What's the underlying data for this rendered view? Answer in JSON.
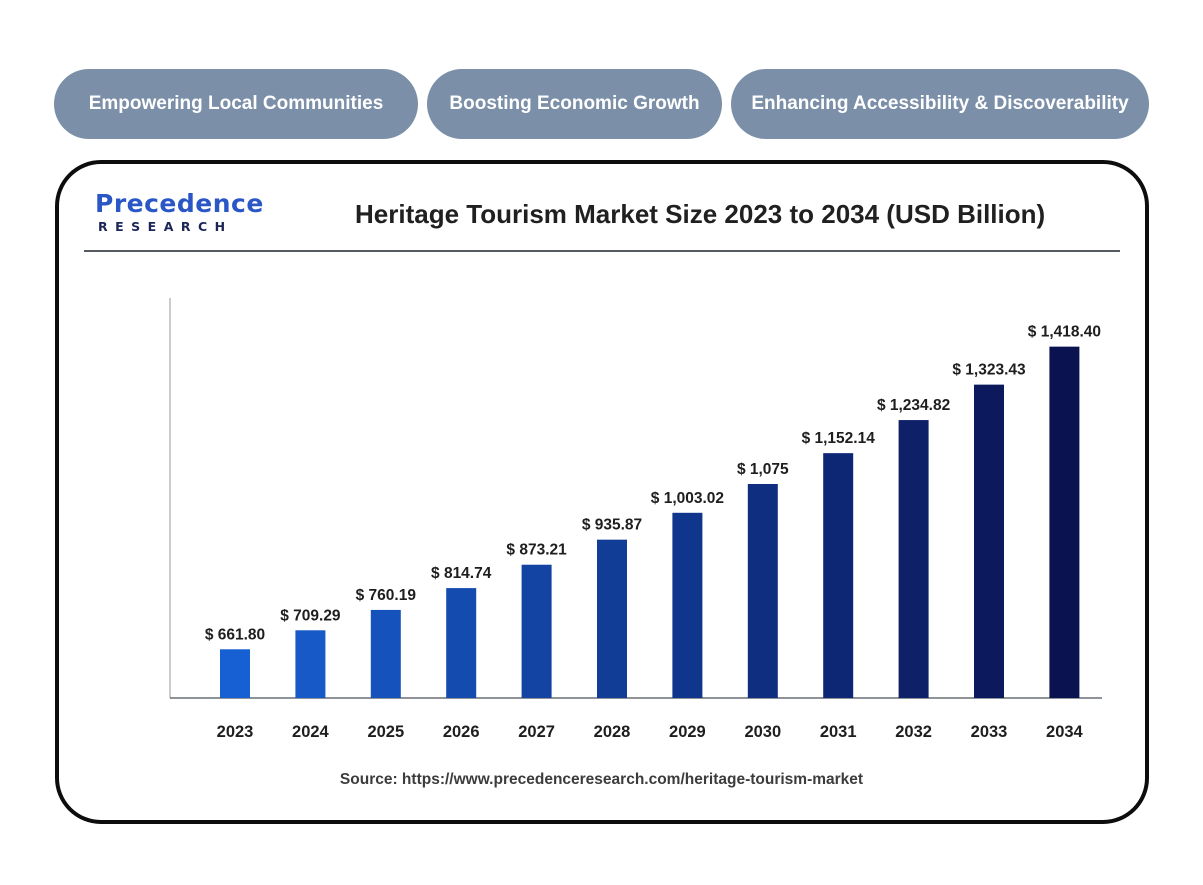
{
  "tabs": [
    {
      "label": "Empowering Local Communities"
    },
    {
      "label": "Boosting Economic Growth"
    },
    {
      "label": "Enhancing Accessibility & Discoverability"
    }
  ],
  "logo": {
    "name": "Precedence",
    "subtitle": "RESEARCH"
  },
  "source_text": "Source: https://www.precedenceresearch.com/heritage-tourism-market",
  "colors": {
    "bar_start": "#1760d3",
    "bar_end": "#0b1250",
    "pill": "#7b8fa8"
  },
  "chart_data": {
    "type": "bar",
    "title": "Heritage Tourism Market Size 2023 to 2034 (USD Billion)",
    "xlabel": "",
    "ylabel": "",
    "categories": [
      "2023",
      "2024",
      "2025",
      "2026",
      "2027",
      "2028",
      "2029",
      "2030",
      "2031",
      "2032",
      "2033",
      "2034"
    ],
    "values": [
      661.8,
      709.29,
      760.19,
      814.74,
      873.21,
      935.87,
      1003.02,
      1075,
      1152.14,
      1234.82,
      1323.43,
      1418.4
    ],
    "labels": [
      "$ 661.80",
      "$ 709.29",
      "$ 760.19",
      "$ 814.74",
      "$ 873.21",
      "$ 935.87",
      "$ 1,003.02",
      "$ 1,075",
      "$ 1,152.14",
      "$ 1,234.82",
      "$ 1,323.43",
      "$ 1,418.40"
    ],
    "ylim": [
      540,
      1520
    ],
    "grid": false,
    "legend": "none"
  }
}
